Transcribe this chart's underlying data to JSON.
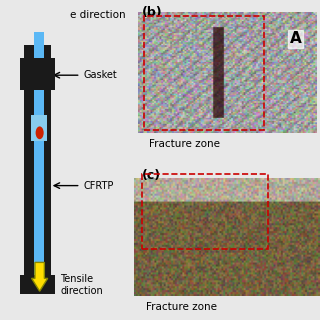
{
  "bg_color": "#e8e8e8",
  "left_panel": {
    "top_label": "e direction",
    "gasket_label": "Gasket",
    "cfrtp_label": "CFRTP",
    "tensile_label": "Tensile\ndirection",
    "dark_color": "#1a1a1a",
    "blue_color": "#5bb8f5",
    "light_blue_color": "#a8d8f0",
    "red_color": "#cc2200",
    "yellow_color": "#ffdd00"
  },
  "right_panel_b": {
    "label": "(b)",
    "fracture_label": "Fracture zone",
    "a_label": "A",
    "dashed_color": "#cc0000",
    "bg_color": "#b0b0b0"
  },
  "right_panel_c": {
    "label": "(c)",
    "fracture_label": "Fracture zone",
    "dashed_color": "#cc0000",
    "bg_color": "#b0b0b0"
  }
}
